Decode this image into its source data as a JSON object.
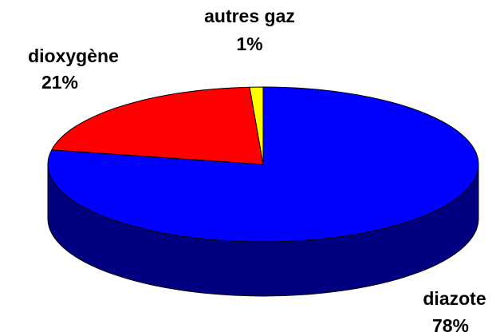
{
  "chart_data": {
    "type": "pie3d",
    "categories": [
      "diazote",
      "dioxygène",
      "autres gaz"
    ],
    "values": [
      78,
      21,
      1
    ],
    "value_labels": [
      "78%",
      "21%",
      "1%"
    ],
    "colors": [
      "#0000ff",
      "#ff0000",
      "#ffff00"
    ]
  }
}
